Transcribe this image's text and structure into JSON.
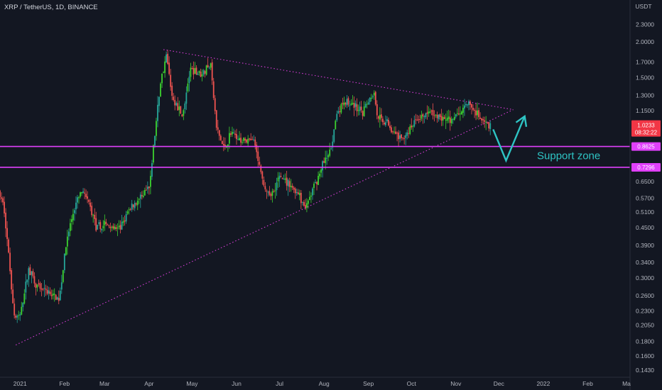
{
  "title": "XRP / TetherUS, 1D, BINANCE",
  "currency": "USDT",
  "chart_data": {
    "type": "candlestick",
    "title": "XRP / TetherUS, 1D, BINANCE",
    "scale": "log",
    "ylim": [
      0.135,
      2.8
    ],
    "y_ticks": [
      "2.3000",
      "2.0000",
      "1.7000",
      "1.5000",
      "1.3000",
      "1.1500",
      "0.8625",
      "0.7296",
      "0.6500",
      "0.5700",
      "0.5100",
      "0.4500",
      "0.3900",
      "0.3400",
      "0.3000",
      "0.2600",
      "0.2300",
      "0.2050",
      "0.1800",
      "0.1600",
      "0.1430"
    ],
    "x_ticks": [
      "2021",
      "Feb",
      "Mar",
      "Apr",
      "May",
      "Jun",
      "Jul",
      "Aug",
      "Sep",
      "Oct",
      "Nov",
      "Dec",
      "2022",
      "Feb",
      "Ma"
    ],
    "x_range": [
      "2020-12-18",
      "2022-03-01"
    ],
    "current_price": {
      "value": "1.0233",
      "countdown": "08:32:22",
      "color": "#f23645"
    },
    "price_path": [
      [
        "2020-12-18",
        0.6
      ],
      [
        "2020-12-22",
        0.52
      ],
      [
        "2020-12-26",
        0.32
      ],
      [
        "2020-12-29",
        0.22
      ],
      [
        "2021-01-02",
        0.22
      ],
      [
        "2021-01-08",
        0.32
      ],
      [
        "2021-01-14",
        0.28
      ],
      [
        "2021-01-22",
        0.27
      ],
      [
        "2021-01-29",
        0.25
      ],
      [
        "2021-02-04",
        0.42
      ],
      [
        "2021-02-09",
        0.53
      ],
      [
        "2021-02-14",
        0.6
      ],
      [
        "2021-02-19",
        0.55
      ],
      [
        "2021-02-24",
        0.45
      ],
      [
        "2021-03-05",
        0.46
      ],
      [
        "2021-03-12",
        0.44
      ],
      [
        "2021-03-20",
        0.53
      ],
      [
        "2021-03-28",
        0.57
      ],
      [
        "2021-04-02",
        0.62
      ],
      [
        "2021-04-06",
        0.95
      ],
      [
        "2021-04-10",
        1.45
      ],
      [
        "2021-04-14",
        1.8
      ],
      [
        "2021-04-18",
        1.3
      ],
      [
        "2021-04-25",
        1.1
      ],
      [
        "2021-05-01",
        1.6
      ],
      [
        "2021-05-08",
        1.55
      ],
      [
        "2021-05-15",
        1.65
      ],
      [
        "2021-05-19",
        1.0
      ],
      [
        "2021-05-24",
        0.85
      ],
      [
        "2021-05-30",
        0.97
      ],
      [
        "2021-06-06",
        0.9
      ],
      [
        "2021-06-14",
        0.9
      ],
      [
        "2021-06-21",
        0.62
      ],
      [
        "2021-06-26",
        0.58
      ],
      [
        "2021-07-02",
        0.68
      ],
      [
        "2021-07-08",
        0.64
      ],
      [
        "2021-07-14",
        0.6
      ],
      [
        "2021-07-20",
        0.53
      ],
      [
        "2021-07-26",
        0.62
      ],
      [
        "2021-08-01",
        0.74
      ],
      [
        "2021-08-06",
        0.82
      ],
      [
        "2021-08-10",
        1.05
      ],
      [
        "2021-08-15",
        1.25
      ],
      [
        "2021-08-22",
        1.2
      ],
      [
        "2021-08-29",
        1.15
      ],
      [
        "2021-09-06",
        1.35
      ],
      [
        "2021-09-08",
        1.1
      ],
      [
        "2021-09-14",
        1.05
      ],
      [
        "2021-09-20",
        0.95
      ],
      [
        "2021-09-24",
        0.92
      ],
      [
        "2021-09-30",
        0.97
      ],
      [
        "2021-10-06",
        1.08
      ],
      [
        "2021-10-12",
        1.12
      ],
      [
        "2021-10-18",
        1.12
      ],
      [
        "2021-10-24",
        1.08
      ],
      [
        "2021-10-30",
        1.07
      ],
      [
        "2021-11-06",
        1.15
      ],
      [
        "2021-11-10",
        1.24
      ],
      [
        "2021-11-15",
        1.15
      ],
      [
        "2021-11-20",
        1.05
      ],
      [
        "2021-11-25",
        1.02
      ]
    ],
    "trendlines": [
      {
        "name": "upper",
        "from": [
          "2021-04-11",
          1.88
        ],
        "to": [
          "2021-12-11",
          1.16
        ],
        "color": "#d63bd6",
        "style": "dotted"
      },
      {
        "name": "lower",
        "from": [
          "2020-12-29",
          0.175
        ],
        "to": [
          "2021-12-11",
          1.16
        ],
        "color": "#d63bd6",
        "style": "dotted"
      }
    ],
    "horizontal_lines": [
      {
        "value": 0.8625,
        "label": "0.8625",
        "color": "#e040fb"
      },
      {
        "value": 0.7296,
        "label": "0.7296",
        "color": "#e040fb"
      }
    ],
    "projection": {
      "points": [
        [
          "2021-11-27",
          0.99
        ],
        [
          "2021-12-06",
          0.77
        ],
        [
          "2021-12-19",
          1.1
        ]
      ],
      "color": "#2ec4c4"
    },
    "annotation": {
      "text": "Support zone",
      "color": "#2ec4c4"
    },
    "colors": {
      "up": "#26a69a",
      "up_bright": "#3cd22f",
      "down": "#ef5350",
      "background": "#131722"
    }
  }
}
